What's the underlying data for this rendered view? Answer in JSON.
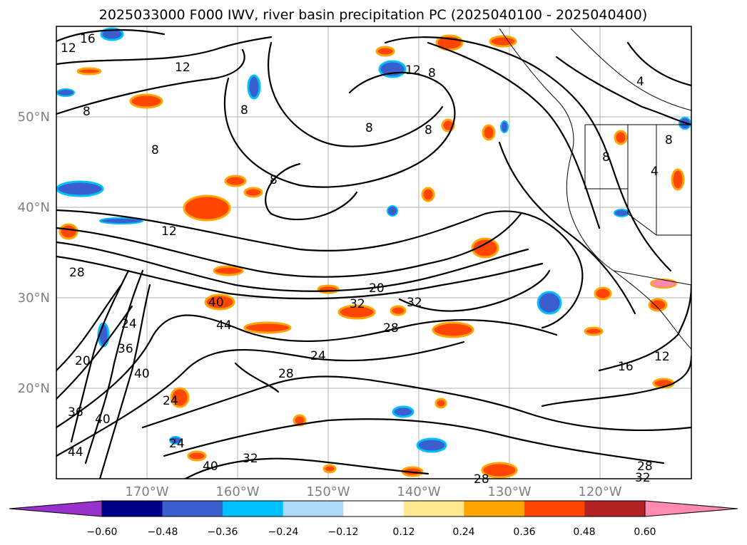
{
  "title": "2025033000 F000 IWV, river basin precipitation PC (2025040100 - 2025040400)",
  "map": {
    "lat_labels": [
      "50°N",
      "40°N",
      "30°N",
      "20°N"
    ],
    "lon_labels": [
      "170°W",
      "160°W",
      "150°W",
      "140°W",
      "130°W",
      "120°W"
    ],
    "contour_labels": [
      "16",
      "12",
      "12",
      "8",
      "12",
      "8",
      "4",
      "8",
      "8",
      "8",
      "8",
      "8",
      "8",
      "4",
      "8",
      "12",
      "28",
      "20",
      "32",
      "40",
      "44",
      "28",
      "32",
      "24",
      "24",
      "20",
      "36",
      "40",
      "24",
      "28",
      "36",
      "40",
      "44",
      "24",
      "32",
      "28",
      "40",
      "16",
      "12",
      "28",
      "32"
    ]
  },
  "colorbar": {
    "ticks": [
      "−0.60",
      "−0.48",
      "−0.36",
      "−0.24",
      "−0.12",
      "0.12",
      "0.24",
      "0.36",
      "0.48",
      "0.60"
    ],
    "colors": [
      "#9932cc",
      "#00008b",
      "#3a5fcd",
      "#00bfff",
      "#add8f6",
      "#ffffff",
      "#ffe88f",
      "#ffa500",
      "#ff4500",
      "#b22222",
      "#ff89b0"
    ],
    "extend": "both"
  }
}
